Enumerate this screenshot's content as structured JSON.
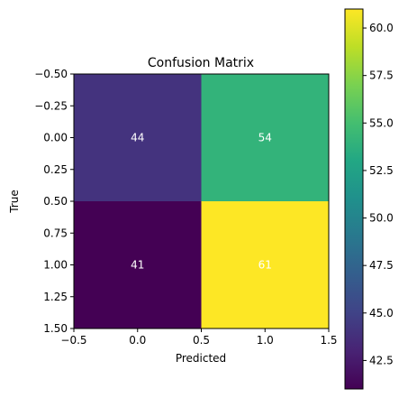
{
  "chart_data": {
    "type": "heatmap",
    "title": "Confusion Matrix",
    "xlabel": "Predicted",
    "ylabel": "True",
    "matrix": [
      [
        44,
        54
      ],
      [
        41,
        61
      ]
    ],
    "xlim": [
      -0.5,
      1.5
    ],
    "ylim": [
      1.5,
      -0.5
    ],
    "x_ticks": [
      "−0.5",
      "0.0",
      "0.5",
      "1.0",
      "1.5"
    ],
    "y_ticks": [
      "−0.50",
      "−0.25",
      "0.00",
      "0.25",
      "0.50",
      "0.75",
      "1.00",
      "1.25",
      "1.50"
    ],
    "colormap": "viridis",
    "colorbar": {
      "range": [
        41,
        61
      ],
      "ticks": [
        "42.5",
        "45.0",
        "47.5",
        "50.0",
        "52.5",
        "55.0",
        "57.5",
        "60.0"
      ],
      "tick_values": [
        42.5,
        45.0,
        47.5,
        50.0,
        52.5,
        55.0,
        57.5,
        60.0
      ]
    },
    "grid": false
  }
}
